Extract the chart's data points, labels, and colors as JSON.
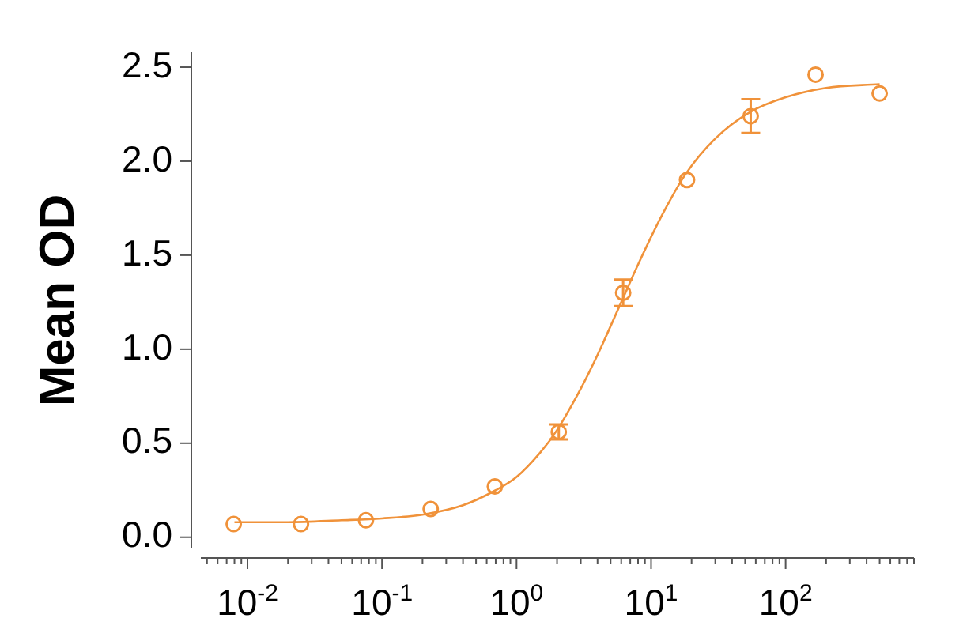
{
  "chart_data": {
    "type": "scatter",
    "ylabel": "Mean OD",
    "log": "x",
    "grid": false,
    "legend": false,
    "marker": "circle",
    "xlim": [
      0.0045,
      900
    ],
    "ylim": [
      -0.06,
      2.58
    ],
    "xticks": [
      {
        "value": 0.005,
        "label": null
      },
      {
        "value": 0.006,
        "label": null
      },
      {
        "value": 0.007,
        "label": null
      },
      {
        "value": 0.008,
        "label": null
      },
      {
        "value": 0.009,
        "label": null
      },
      {
        "value": 0.01,
        "label": "10$^{-2}$"
      },
      {
        "value": 0.02,
        "label": null
      },
      {
        "value": 0.03,
        "label": null
      },
      {
        "value": 0.04,
        "label": null
      },
      {
        "value": 0.05,
        "label": null
      },
      {
        "value": 0.06,
        "label": null
      },
      {
        "value": 0.07,
        "label": null
      },
      {
        "value": 0.08,
        "label": null
      },
      {
        "value": 0.09,
        "label": null
      },
      {
        "value": 0.1,
        "label": "10$^{-1}$"
      },
      {
        "value": 0.2,
        "label": null
      },
      {
        "value": 0.3,
        "label": null
      },
      {
        "value": 0.4,
        "label": null
      },
      {
        "value": 0.5,
        "label": null
      },
      {
        "value": 0.6,
        "label": null
      },
      {
        "value": 0.7,
        "label": null
      },
      {
        "value": 0.8,
        "label": null
      },
      {
        "value": 0.9,
        "label": null
      },
      {
        "value": 1,
        "label": "10$^{0}$"
      },
      {
        "value": 2,
        "label": null
      },
      {
        "value": 3,
        "label": null
      },
      {
        "value": 4,
        "label": null
      },
      {
        "value": 5,
        "label": null
      },
      {
        "value": 6,
        "label": null
      },
      {
        "value": 7,
        "label": null
      },
      {
        "value": 8,
        "label": null
      },
      {
        "value": 9,
        "label": null
      },
      {
        "value": 10,
        "label": "10$^{1}$"
      },
      {
        "value": 20,
        "label": null
      },
      {
        "value": 30,
        "label": null
      },
      {
        "value": 40,
        "label": null
      },
      {
        "value": 50,
        "label": null
      },
      {
        "value": 60,
        "label": null
      },
      {
        "value": 70,
        "label": null
      },
      {
        "value": 80,
        "label": null
      },
      {
        "value": 90,
        "label": null
      },
      {
        "value": 100,
        "label": "10$^{2}$"
      },
      {
        "value": 200,
        "label": null
      },
      {
        "value": 300,
        "label": null
      },
      {
        "value": 400,
        "label": null
      },
      {
        "value": 500,
        "label": null
      },
      {
        "value": 600,
        "label": null
      },
      {
        "value": 700,
        "label": null
      },
      {
        "value": 800,
        "label": null
      },
      {
        "value": 900,
        "label": null
      }
    ],
    "yticks": [
      {
        "value": 0,
        "label": "0.0"
      },
      {
        "value": 0.5,
        "label": "0.5"
      },
      {
        "value": 1,
        "label": "1.0"
      },
      {
        "value": 1.5,
        "label": "1.5"
      },
      {
        "value": 2,
        "label": "2.0"
      },
      {
        "value": 2.5,
        "label": "2.5"
      }
    ],
    "series": [
      {
        "type": "scatter",
        "color": "#f0923a",
        "x": [
          0.0079,
          0.025,
          0.076,
          0.23,
          0.69,
          2.06,
          6.2,
          18.5,
          55,
          167,
          500
        ],
        "values": [
          0.07,
          0.07,
          0.09,
          0.15,
          0.27,
          0.56,
          1.3,
          1.9,
          2.24,
          2.46,
          2.36
        ],
        "errors": [
          null,
          null,
          null,
          null,
          null,
          0.04,
          0.07,
          null,
          0.09,
          null,
          null
        ]
      },
      {
        "type": "line",
        "color": "#f0923a",
        "marker": "none",
        "x": [
          0.008,
          0.02,
          0.05,
          0.1,
          0.2,
          0.4,
          0.7,
          1,
          1.5,
          2,
          3,
          4,
          6,
          8,
          12,
          18,
          30,
          54,
          100,
          200,
          500
        ],
        "values": [
          0.08,
          0.08,
          0.09,
          0.1,
          0.12,
          0.17,
          0.25,
          0.32,
          0.45,
          0.57,
          0.79,
          0.97,
          1.25,
          1.45,
          1.71,
          1.93,
          2.12,
          2.26,
          2.34,
          2.39,
          2.41
        ]
      }
    ]
  }
}
